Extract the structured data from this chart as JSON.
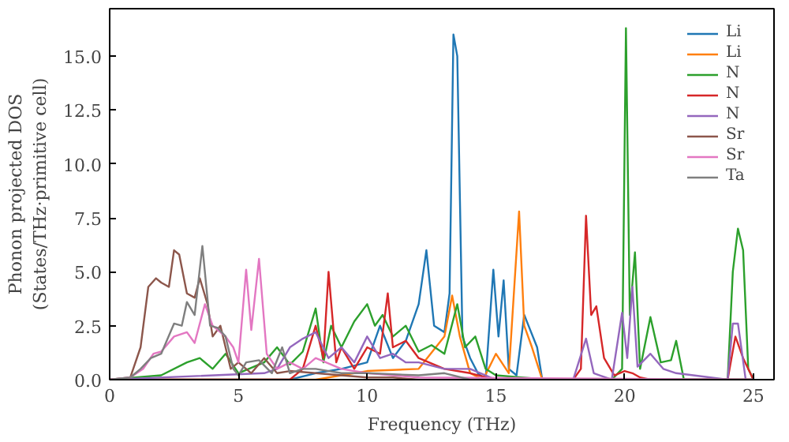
{
  "chart_data": {
    "type": "line",
    "xlabel": "Frequency (THz)",
    "ylabel": "Phonon projected DOS\n(States/THz·primitive cell)",
    "xlim": [
      0,
      25.8
    ],
    "ylim": [
      0,
      17.2
    ],
    "xticks": [
      0,
      5,
      10,
      15,
      20,
      25
    ],
    "yticks": [
      {
        "value": 0,
        "label": "0.0"
      },
      {
        "value": 2.5,
        "label": "2.5"
      },
      {
        "value": 5,
        "label": "5.0"
      },
      {
        "value": 7.5,
        "label": "7.5"
      },
      {
        "value": 10,
        "label": "10.0"
      },
      {
        "value": 12.5,
        "label": "12.5"
      },
      {
        "value": 15,
        "label": "15.0"
      }
    ],
    "grid": false,
    "legend": "top right",
    "marker": "none",
    "line_style": "solid",
    "series": [
      {
        "name": "Li",
        "color": "#1f77b4",
        "x": [
          0,
          7,
          8,
          9,
          10,
          10.5,
          11,
          11.5,
          12,
          12.3,
          12.6,
          13,
          13.2,
          13.35,
          13.5,
          13.7,
          14,
          14.3,
          14.6,
          14.9,
          15.1,
          15.3,
          15.5,
          15.8,
          16.1,
          16.3,
          16.6,
          16.8,
          20,
          25
        ],
        "values": [
          0,
          0,
          0.3,
          0.5,
          0.8,
          2.5,
          1,
          1.8,
          3.5,
          6,
          2.5,
          2.2,
          4,
          16,
          15,
          2,
          1,
          0.3,
          0,
          5.1,
          2,
          4.6,
          0.5,
          0.2,
          3,
          2.4,
          1.5,
          0,
          0,
          0
        ]
      },
      {
        "name": "Li",
        "color": "#ff7f0e",
        "x": [
          0,
          8,
          10,
          12,
          13,
          13.3,
          13.6,
          14,
          14.5,
          15,
          15.5,
          15.9,
          16.1,
          16.4,
          16.8,
          20,
          25
        ],
        "values": [
          0,
          0,
          0.4,
          0.5,
          2,
          3.9,
          2,
          0.3,
          0,
          1.2,
          0.3,
          7.8,
          2.5,
          1.5,
          0,
          0,
          0
        ]
      },
      {
        "name": "N",
        "color": "#2ca02c",
        "x": [
          0,
          2,
          3,
          3.5,
          4,
          4.5,
          5,
          6,
          6.5,
          7,
          7.5,
          8,
          8.3,
          8.6,
          9,
          9.5,
          10,
          10.3,
          10.6,
          11,
          11.5,
          12,
          12.5,
          13,
          13.5,
          13.8,
          14.2,
          14.6,
          15,
          17,
          19.5,
          19.9,
          20.05,
          20.2,
          20.4,
          20.6,
          21,
          21.4,
          21.8,
          22,
          22.3,
          24,
          24.2,
          24.4,
          24.6,
          24.8,
          25
        ],
        "values": [
          0,
          0.2,
          0.8,
          1,
          0.5,
          1.2,
          0.3,
          0.8,
          1.5,
          0.7,
          1.3,
          3.3,
          0.8,
          2.5,
          1.5,
          2.7,
          3.5,
          2.5,
          3,
          2,
          2.5,
          1.3,
          1.6,
          1.2,
          3.5,
          1.5,
          2,
          0.5,
          0.2,
          0,
          0,
          0.5,
          16.3,
          3,
          5.9,
          0.5,
          2.9,
          0.8,
          0.9,
          1.8,
          0,
          0,
          5,
          7,
          6,
          0.5,
          0
        ]
      },
      {
        "name": "N",
        "color": "#d62728",
        "x": [
          0,
          7,
          7.5,
          8,
          8.3,
          8.5,
          8.8,
          9,
          9.5,
          10,
          10.5,
          10.8,
          11,
          11.5,
          12,
          13,
          14,
          15,
          17,
          18,
          18.3,
          18.5,
          18.7,
          18.9,
          19.2,
          19.6,
          20,
          20.3,
          20.6,
          21,
          24,
          24.3,
          24.6,
          25
        ],
        "values": [
          0,
          0,
          0.5,
          2.5,
          1,
          5,
          0.8,
          1.5,
          0.5,
          1.5,
          1.2,
          4,
          1.5,
          1.8,
          1,
          0.5,
          0.3,
          0,
          0,
          0,
          0.5,
          7.6,
          3,
          3.4,
          1,
          0.2,
          0.4,
          0.3,
          0.1,
          0,
          0,
          2,
          1,
          0
        ]
      },
      {
        "name": "N",
        "color": "#9467bd",
        "x": [
          0,
          6,
          6.5,
          7,
          7.5,
          8,
          8.5,
          9,
          9.5,
          10,
          10.5,
          11,
          11.5,
          12,
          13,
          14,
          15,
          18,
          18.5,
          18.8,
          19.5,
          19.9,
          20.1,
          20.3,
          20.5,
          21,
          21.5,
          22,
          24,
          24.2,
          24.4,
          24.7,
          25
        ],
        "values": [
          0,
          0.3,
          0.5,
          1.5,
          1.9,
          2.2,
          1,
          1.5,
          0.8,
          2,
          1,
          1.2,
          0.8,
          0.8,
          0.5,
          0.5,
          0,
          0,
          1.9,
          0.3,
          0,
          3.1,
          1,
          4.3,
          0.6,
          1.2,
          0.5,
          0.3,
          0,
          2.6,
          2.6,
          0,
          0
        ]
      },
      {
        "name": "Sr",
        "color": "#8c564b",
        "x": [
          0,
          0.8,
          1.2,
          1.5,
          1.8,
          2,
          2.3,
          2.5,
          2.7,
          3,
          3.3,
          3.5,
          3.8,
          4,
          4.3,
          4.7,
          5,
          5.5,
          6,
          6.5,
          7,
          8,
          9,
          10,
          11,
          12,
          25
        ],
        "values": [
          0,
          0.1,
          1.5,
          4.3,
          4.7,
          4.5,
          4.3,
          6,
          5.8,
          4,
          3.8,
          4.7,
          3.5,
          2,
          2.5,
          0.5,
          0.8,
          0.3,
          1,
          0.3,
          0.4,
          0.3,
          0.2,
          0.1,
          0.1,
          0,
          0
        ]
      },
      {
        "name": "Sr",
        "color": "#e377c2",
        "x": [
          0,
          0.8,
          1.3,
          1.7,
          2,
          2.5,
          3,
          3.3,
          3.7,
          4,
          4.5,
          4.8,
          5,
          5.3,
          5.5,
          5.8,
          6.1,
          6.5,
          7,
          7.5,
          8,
          9,
          10,
          12,
          25
        ],
        "values": [
          0,
          0.1,
          0.5,
          1.2,
          1.3,
          2,
          2.2,
          1.7,
          3.5,
          2.5,
          2,
          1.5,
          0.8,
          5.1,
          2.3,
          5.6,
          1.2,
          0.5,
          0.8,
          0.5,
          1,
          0.5,
          0.3,
          0.1,
          0
        ]
      },
      {
        "name": "Ta",
        "color": "#7f7f7f",
        "x": [
          0,
          0.8,
          1.2,
          1.6,
          2,
          2.5,
          2.8,
          3,
          3.3,
          3.6,
          3.9,
          4.2,
          4.5,
          4.8,
          5,
          5.3,
          5.8,
          6.3,
          6.7,
          7,
          7.5,
          8,
          9,
          10,
          12,
          13,
          14,
          20,
          25
        ],
        "values": [
          0,
          0.1,
          0.5,
          1,
          1.2,
          2.6,
          2.5,
          3.6,
          3,
          6.2,
          2.5,
          2.4,
          2,
          0.5,
          0.2,
          0.8,
          0.9,
          0.3,
          1.5,
          0.3,
          0.5,
          0.5,
          0.3,
          0.3,
          0.2,
          0.3,
          0,
          0,
          0
        ]
      }
    ]
  }
}
